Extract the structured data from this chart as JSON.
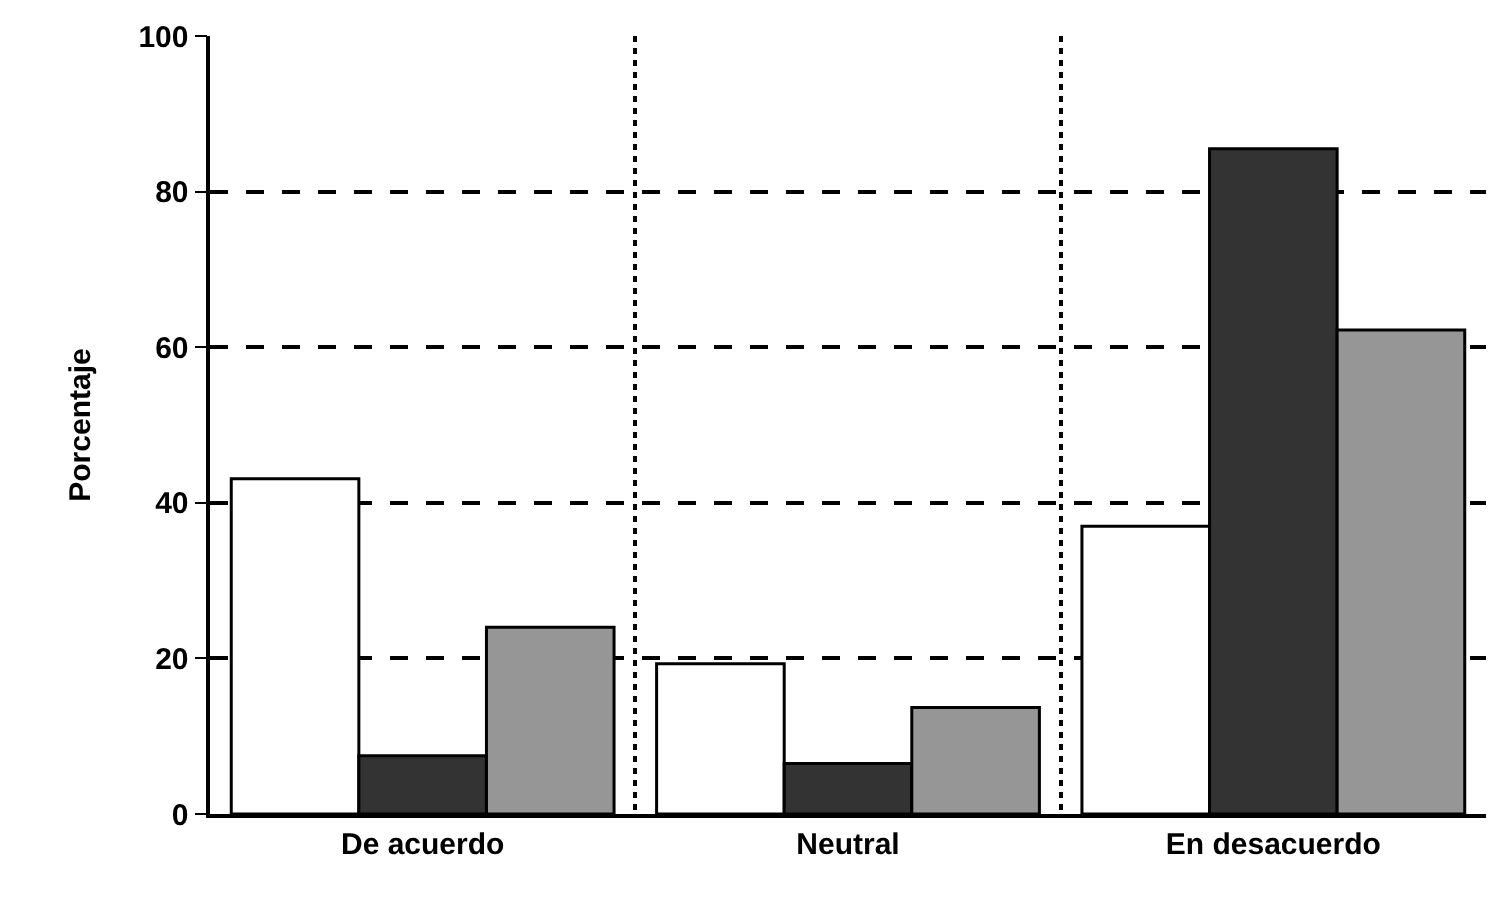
{
  "chart_data": {
    "type": "bar",
    "ylabel": "Porcentaje",
    "categories": [
      "De acuerdo",
      "Neutral",
      "En desacuerdo"
    ],
    "series": [
      {
        "color": "#ffffff",
        "values": [
          43.1,
          19.3,
          37.0
        ]
      },
      {
        "color": "#333333",
        "values": [
          7.5,
          6.5,
          85.5
        ]
      },
      {
        "color": "#969696",
        "values": [
          24.0,
          13.7,
          62.2
        ]
      }
    ],
    "ylim": [
      0,
      100
    ],
    "yticks": [
      0,
      20,
      40,
      60,
      80,
      100
    ],
    "grid": true
  }
}
